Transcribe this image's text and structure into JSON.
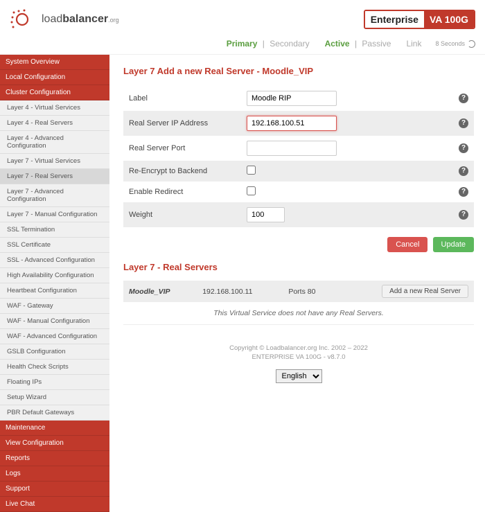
{
  "header": {
    "brand_bold": "loadbalancer",
    "brand_org": ".org",
    "badge_ent": "Enterprise",
    "badge_va": "VA 100G"
  },
  "statusbar": {
    "primary": "Primary",
    "secondary": "Secondary",
    "active": "Active",
    "passive": "Passive",
    "link": "Link",
    "seconds": "8 Seconds"
  },
  "sidebar": {
    "sections": [
      {
        "type": "section",
        "label": "System Overview"
      },
      {
        "type": "section",
        "label": "Local Configuration"
      },
      {
        "type": "section",
        "label": "Cluster Configuration"
      },
      {
        "type": "item",
        "label": "Layer 4 - Virtual Services"
      },
      {
        "type": "item",
        "label": "Layer 4 - Real Servers"
      },
      {
        "type": "item",
        "label": "Layer 4 - Advanced Configuration"
      },
      {
        "type": "item",
        "label": "Layer 7 - Virtual Services"
      },
      {
        "type": "item",
        "label": "Layer 7 - Real Servers",
        "selected": true
      },
      {
        "type": "item",
        "label": "Layer 7 - Advanced Configuration"
      },
      {
        "type": "item",
        "label": "Layer 7 - Manual Configuration"
      },
      {
        "type": "item",
        "label": "SSL Termination"
      },
      {
        "type": "item",
        "label": "SSL Certificate"
      },
      {
        "type": "item",
        "label": "SSL - Advanced Configuration"
      },
      {
        "type": "item",
        "label": "High Availability Configuration"
      },
      {
        "type": "item",
        "label": "Heartbeat Configuration"
      },
      {
        "type": "item",
        "label": "WAF - Gateway"
      },
      {
        "type": "item",
        "label": "WAF - Manual Configuration"
      },
      {
        "type": "item",
        "label": "WAF - Advanced Configuration"
      },
      {
        "type": "item",
        "label": "GSLB Configuration"
      },
      {
        "type": "item",
        "label": "Health Check Scripts"
      },
      {
        "type": "item",
        "label": "Floating IPs"
      },
      {
        "type": "item",
        "label": "Setup Wizard"
      },
      {
        "type": "item",
        "label": "PBR Default Gateways"
      },
      {
        "type": "section",
        "label": "Maintenance"
      },
      {
        "type": "section",
        "label": "View Configuration"
      },
      {
        "type": "section",
        "label": "Reports"
      },
      {
        "type": "section",
        "label": "Logs"
      },
      {
        "type": "section",
        "label": "Support"
      },
      {
        "type": "section",
        "label": "Live Chat"
      }
    ]
  },
  "form": {
    "title": "Layer 7 Add a new Real Server - Moodle_VIP",
    "rows": {
      "label_lbl": "Label",
      "label_val": "Moodle RIP",
      "ip_lbl": "Real Server IP Address",
      "ip_val": "192.168.100.51",
      "port_lbl": "Real Server Port",
      "port_val": "",
      "reenc_lbl": "Re-Encrypt to Backend",
      "redirect_lbl": "Enable Redirect",
      "weight_lbl": "Weight",
      "weight_val": "100"
    },
    "cancel": "Cancel",
    "update": "Update"
  },
  "realservers": {
    "title": "Layer 7 - Real Servers",
    "vs_name": "Moodle_VIP",
    "vs_ip": "192.168.100.11",
    "vs_ports": "Ports 80",
    "add_btn": "Add a new Real Server",
    "empty": "This Virtual Service does not have any Real Servers."
  },
  "footer": {
    "copyright": "Copyright © Loadbalancer.org Inc. 2002 – 2022",
    "version": "ENTERPRISE VA 100G - v8.7.0",
    "lang": "English"
  },
  "colors": {
    "brand_red": "#c0392b",
    "green": "#5cb85c",
    "active_green": "#5a9e3f",
    "gray_bg": "#ededed"
  }
}
